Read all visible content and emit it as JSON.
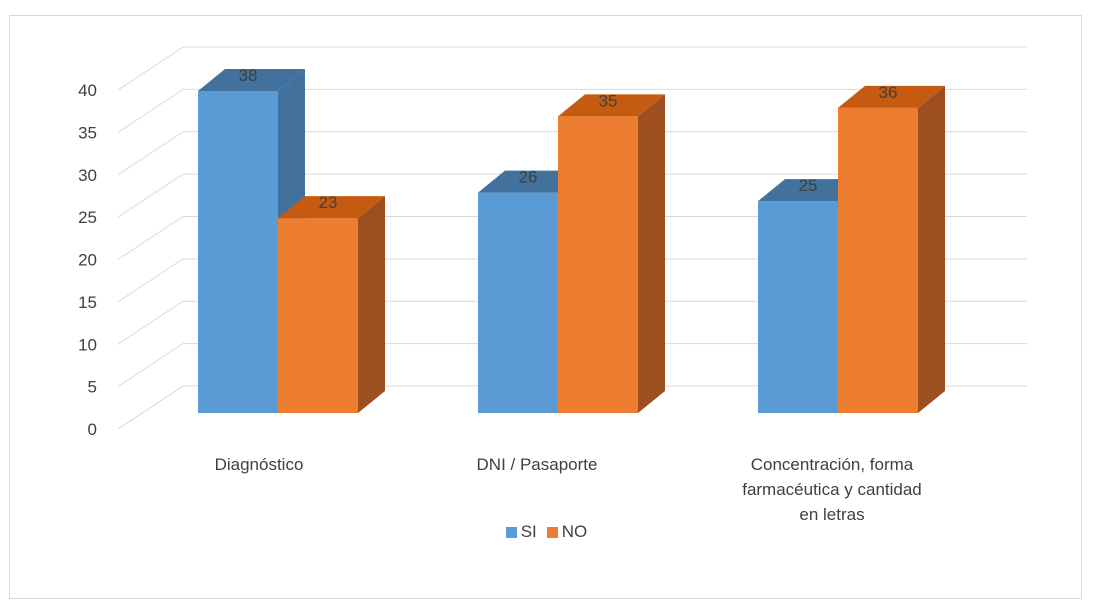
{
  "chart_data": {
    "type": "bar",
    "variant": "3d-clustered-column",
    "title": "",
    "xlabel": "",
    "ylabel": "",
    "categories": [
      "Diagnóstico",
      "DNI / Pasaporte",
      "Concentración, forma farmacéutica y cantidad en letras"
    ],
    "category_lines": [
      [
        "Diagnóstico"
      ],
      [
        "DNI / Pasaporte"
      ],
      [
        "Concentración, forma",
        "farmacéutica y cantidad",
        "en letras"
      ]
    ],
    "series": [
      {
        "name": "SI",
        "values": [
          38,
          26,
          25
        ],
        "color": "#5b9bd5"
      },
      {
        "name": "NO",
        "values": [
          23,
          35,
          36
        ],
        "color": "#ed7d31"
      }
    ],
    "ylim": [
      0,
      40
    ],
    "yticks": [
      0,
      5,
      10,
      15,
      20,
      25,
      30,
      35,
      40
    ],
    "grid": true,
    "legend_position": "bottom",
    "data_labels": true
  },
  "colors": {
    "si": "#5b9bd5",
    "si_side": "#41719c",
    "si_top": "#41719c",
    "no": "#ed7d31",
    "no_side": "#9e4f1f",
    "no_top": "#c55a11",
    "grid": "#d9d9d9",
    "text": "#404040"
  }
}
